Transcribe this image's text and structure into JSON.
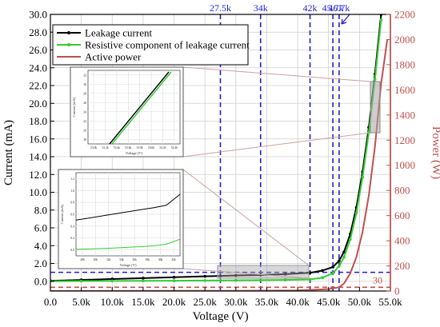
{
  "chart_data": {
    "type": "line",
    "xlabel": "Voltage (V)",
    "ylabel_left": "Current (mA)",
    "ylabel_right": "Power (W)",
    "xlim": [
      0,
      55000
    ],
    "ylim_left": [
      -1.1,
      30
    ],
    "ylim_right": [
      0,
      2200
    ],
    "grid": true,
    "x_ticks": [
      0,
      5000,
      10000,
      15000,
      20000,
      25000,
      30000,
      35000,
      40000,
      45000,
      50000,
      55000
    ],
    "x_tick_labels": [
      "0.0",
      "5.0k",
      "10.0k",
      "15.0k",
      "20.0k",
      "25.0k",
      "30.0k",
      "35.0k",
      "40.0k",
      "45.0k",
      "50.0k",
      "55.0k"
    ],
    "y_left_ticks": [
      0,
      2,
      4,
      6,
      8,
      10,
      12,
      14,
      16,
      18,
      20,
      22,
      24,
      26,
      28,
      30
    ],
    "y_left_tick_labels": [
      "0.0",
      "2.0",
      "4.0",
      "6.0",
      "8.0",
      "10.0",
      "12.0",
      "14.0",
      "16.0",
      "18.0",
      "20.0",
      "22.0",
      "24.0",
      "26.0",
      "28.0",
      "30.0"
    ],
    "y_right_ticks": [
      0,
      200,
      400,
      600,
      800,
      1000,
      1200,
      1400,
      1600,
      1800,
      2000,
      2200
    ],
    "y_right_tick_labels": [
      "0",
      "200",
      "400",
      "600",
      "800",
      "1000",
      "1200",
      "1400",
      "1600",
      "1800",
      "2000",
      "2200"
    ],
    "legend_position": "top-left",
    "series": [
      {
        "name": "Leakage current",
        "axis": "left",
        "color": "#000000",
        "marker": "dot",
        "x": [
          0,
          5000,
          10000,
          15000,
          20000,
          25000,
          27500,
          30000,
          34000,
          38000,
          42000,
          44000,
          45700,
          46700,
          47500,
          48500,
          49500,
          50500,
          51500,
          52500,
          53500
        ],
        "y": [
          0.05,
          0.15,
          0.25,
          0.35,
          0.45,
          0.55,
          0.6,
          0.65,
          0.7,
          0.8,
          0.95,
          1.2,
          1.6,
          2.3,
          3.3,
          5.3,
          8.3,
          12.3,
          17.3,
          23.3,
          30
        ]
      },
      {
        "name": "Resistive component of leakage current",
        "axis": "left",
        "color": "#33cc33",
        "marker": "dot",
        "x": [
          0,
          5000,
          10000,
          15000,
          20000,
          25000,
          27500,
          30000,
          34000,
          38000,
          42000,
          44000,
          45700,
          46700,
          47500,
          48500,
          49500,
          50500,
          51500,
          52500,
          53500
        ],
        "y": [
          0.0,
          0.02,
          0.03,
          0.05,
          0.06,
          0.08,
          0.09,
          0.1,
          0.12,
          0.15,
          0.2,
          0.4,
          0.9,
          1.7,
          2.7,
          4.7,
          7.7,
          11.7,
          16.7,
          22.7,
          29.4
        ]
      },
      {
        "name": "Active power",
        "axis": "right",
        "color": "#c0504d",
        "marker": "none",
        "x": [
          0,
          10000,
          20000,
          30000,
          40000,
          45000,
          46700,
          47500,
          48500,
          49500,
          50500,
          51500,
          52500,
          53500,
          54500
        ],
        "y": [
          0,
          0.5,
          1,
          2,
          5,
          15,
          30,
          60,
          140,
          270,
          470,
          760,
          1150,
          1650,
          2000
        ]
      }
    ],
    "reference_lines": [
      {
        "axis": "x",
        "value": 27500,
        "label": "27.5k"
      },
      {
        "axis": "x",
        "value": 34000,
        "label": "34k"
      },
      {
        "axis": "x",
        "value": 42000,
        "label": "42k"
      },
      {
        "axis": "x",
        "value": 45700,
        "label": "45.7k"
      },
      {
        "axis": "x",
        "value": 46700,
        "label": "46.7k"
      },
      {
        "axis": "y_left",
        "value": 1,
        "label": "1"
      },
      {
        "axis": "y_right",
        "value": 30,
        "label": "30"
      }
    ],
    "insets": [
      {
        "ylabel": "Current (mA)",
        "xlabel": "Voltage (V)",
        "x_tick_labels": [
          "53.0k",
          "53.2k",
          "53.4k",
          "53.6k",
          "53.8k",
          "54.0k",
          "54.2k",
          "54.4k"
        ],
        "y_tick_labels": [
          "18",
          "20",
          "22",
          "24",
          "26",
          "28",
          "30",
          "32"
        ]
      },
      {
        "ylabel": "Current (mA)",
        "xlabel": "Voltage (V)",
        "x_tick_labels": [
          "28k",
          "30k",
          "32k",
          "34k",
          "36k",
          "38k",
          "40k",
          "42k"
        ],
        "y_tick_labels": [
          "0.0",
          "0.2",
          "0.4",
          "0.6",
          "0.8",
          "1.0",
          "1.2"
        ]
      }
    ]
  }
}
